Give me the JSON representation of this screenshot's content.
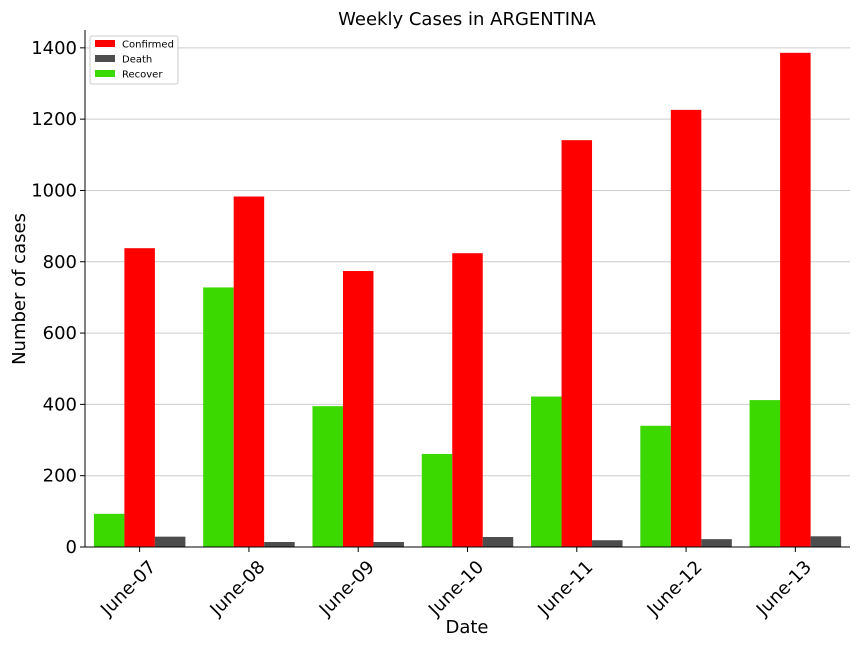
{
  "chart_data": {
    "type": "bar",
    "title": "Weekly Cases in ARGENTINA",
    "xlabel": "Date",
    "ylabel": "Number of cases",
    "categories": [
      "June-07",
      "June-08",
      "June-09",
      "June-10",
      "June-11",
      "June-12",
      "June-13"
    ],
    "series": [
      {
        "name": "Recover",
        "color": "#3cd900",
        "values": [
          93,
          728,
          395,
          261,
          422,
          340,
          412
        ]
      },
      {
        "name": "Confirmed",
        "color": "#ff0000",
        "values": [
          838,
          983,
          774,
          824,
          1141,
          1226,
          1386
        ]
      },
      {
        "name": "Death",
        "color": "#4d4d4d",
        "values": [
          29,
          14,
          14,
          28,
          19,
          22,
          30
        ]
      }
    ],
    "legend": {
      "placement": "top-left",
      "order": [
        "Confirmed",
        "Death",
        "Recover"
      ]
    },
    "ylim": [
      0,
      1450
    ],
    "yticks": [
      0,
      200,
      400,
      600,
      800,
      1000,
      1200,
      1400
    ],
    "grid": {
      "y": true,
      "x": false,
      "color": "#cccccc"
    }
  }
}
